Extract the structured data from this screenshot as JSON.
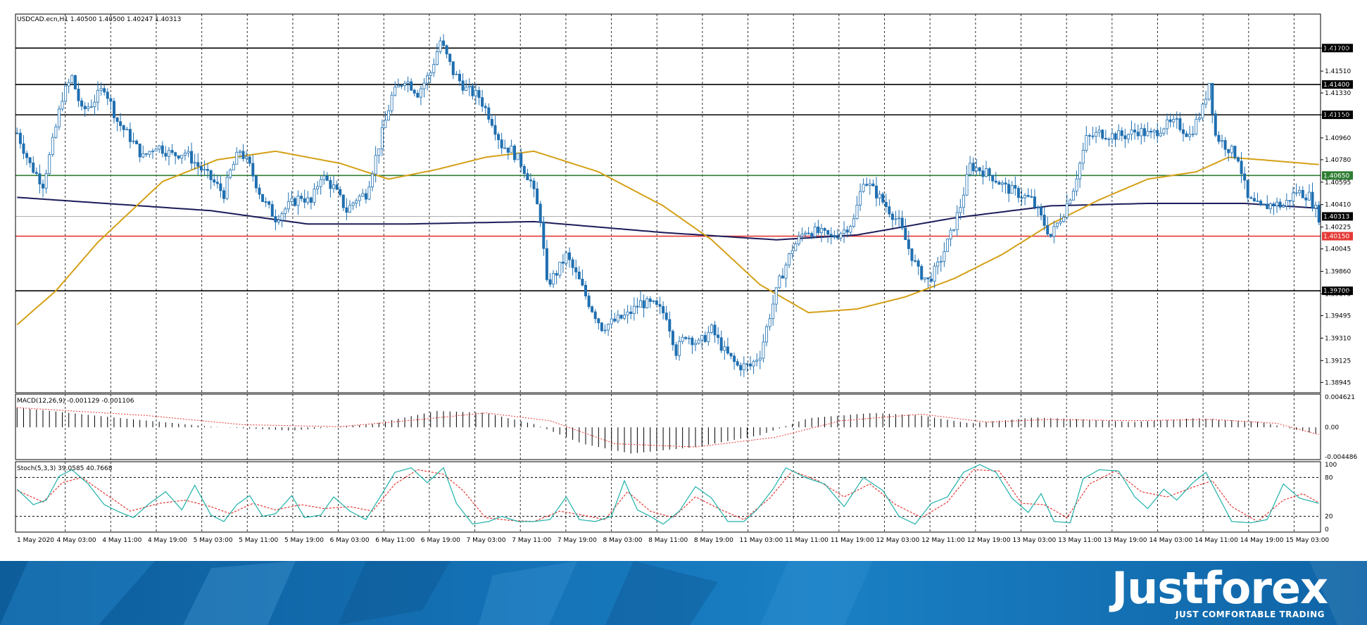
{
  "header": {
    "main_title": "USDCAD.ecn,H1  1.40500 1.40500 1.40247 1.40313",
    "macd_title": "MACD(12,26,9) -0.001129 -0.001106",
    "stoch_title": "Stoch(5,3,3) 39.0585 40.7668"
  },
  "branding": {
    "logo": "Justforex",
    "tagline": "JUST COMFORTABLE TRADING"
  },
  "colors": {
    "bull": "#ffffff",
    "bear": "#1f6fb0",
    "candle_outline": "#1f6fb0",
    "ma_fast": "#d4a017",
    "ma_slow": "#1c1c5a",
    "level_black": "#000000",
    "level_green": "#2e7d32",
    "level_red": "#e53935",
    "stoch_main": "#20b2aa",
    "stoch_signal": "#e53935",
    "macd_signal": "#e53935"
  },
  "chart_data": {
    "type": "candlestick",
    "symbol": "USDCAD.ecn",
    "timeframe": "H1",
    "ylim": [
      1.3886,
      1.4198
    ],
    "y_ticks": [
      "1.41700",
      "1.41510",
      "1.41330",
      "1.41150",
      "1.40960",
      "1.40780",
      "1.40595",
      "1.40410",
      "1.40225",
      "1.40045",
      "1.39860",
      "1.39675",
      "1.39495",
      "1.39310",
      "1.39125",
      "1.38945"
    ],
    "x_ticks": [
      "1 May 2020",
      "4 May 03:00",
      "4 May 11:00",
      "4 May 19:00",
      "5 May 03:00",
      "5 May 11:00",
      "5 May 19:00",
      "6 May 03:00",
      "6 May 11:00",
      "6 May 19:00",
      "7 May 03:00",
      "7 May 11:00",
      "7 May 19:00",
      "8 May 03:00",
      "8 May 11:00",
      "8 May 19:00",
      "11 May 03:00",
      "11 May 11:00",
      "11 May 19:00",
      "12 May 03:00",
      "12 May 11:00",
      "12 May 19:00",
      "13 May 03:00",
      "13 May 11:00",
      "13 May 19:00",
      "14 May 03:00",
      "14 May 11:00",
      "14 May 19:00",
      "15 May 03:00"
    ],
    "levels": [
      {
        "value": 1.417,
        "label": "1.41700",
        "color": "#000000"
      },
      {
        "value": 1.414,
        "label": "1.41400",
        "color": "#000000"
      },
      {
        "value": 1.4115,
        "label": "1.41150",
        "color": "#000000"
      },
      {
        "value": 1.4065,
        "label": "1.40650",
        "color": "#2e7d32"
      },
      {
        "value": 1.4015,
        "label": "1.40150",
        "color": "#e53935"
      },
      {
        "value": 1.397,
        "label": "1.39700",
        "color": "#000000"
      }
    ],
    "current_price": {
      "value": 1.40313,
      "label": "1.40313"
    },
    "price_path": [
      [
        0,
        1.41
      ],
      [
        4,
        1.4074
      ],
      [
        8,
        1.4058
      ],
      [
        11,
        1.4092
      ],
      [
        14,
        1.413
      ],
      [
        17,
        1.4146
      ],
      [
        20,
        1.4118
      ],
      [
        23,
        1.4124
      ],
      [
        27,
        1.4138
      ],
      [
        31,
        1.411
      ],
      [
        35,
        1.4096
      ],
      [
        39,
        1.408
      ],
      [
        43,
        1.409
      ],
      [
        48,
        1.4082
      ],
      [
        52,
        1.4084
      ],
      [
        56,
        1.4073
      ],
      [
        60,
        1.4062
      ],
      [
        64,
        1.405
      ],
      [
        66,
        1.4068
      ],
      [
        69,
        1.4086
      ],
      [
        72,
        1.4072
      ],
      [
        76,
        1.4045
      ],
      [
        80,
        1.403
      ],
      [
        84,
        1.404
      ],
      [
        88,
        1.4048
      ],
      [
        91,
        1.4042
      ],
      [
        94,
        1.4065
      ],
      [
        98,
        1.4055
      ],
      [
        102,
        1.4036
      ],
      [
        105,
        1.4046
      ],
      [
        108,
        1.405
      ],
      [
        112,
        1.409
      ],
      [
        116,
        1.413
      ],
      [
        120,
        1.4145
      ],
      [
        124,
        1.4133
      ],
      [
        128,
        1.415
      ],
      [
        131,
        1.4176
      ],
      [
        135,
        1.415
      ],
      [
        139,
        1.4136
      ],
      [
        143,
        1.413
      ],
      [
        147,
        1.411
      ],
      [
        150,
        1.409
      ],
      [
        153,
        1.4086
      ],
      [
        156,
        1.4075
      ],
      [
        159,
        1.406
      ],
      [
        162,
        1.403
      ],
      [
        164,
        1.3975
      ],
      [
        167,
        1.3985
      ],
      [
        170,
        1.3999
      ],
      [
        174,
        1.3978
      ],
      [
        177,
        1.396
      ],
      [
        181,
        1.394
      ],
      [
        185,
        1.3945
      ],
      [
        189,
        1.395
      ],
      [
        193,
        1.396
      ],
      [
        197,
        1.3958
      ],
      [
        201,
        1.395
      ],
      [
        204,
        1.392
      ],
      [
        207,
        1.3934
      ],
      [
        211,
        1.3926
      ],
      [
        215,
        1.3938
      ],
      [
        219,
        1.392
      ],
      [
        223,
        1.3908
      ],
      [
        227,
        1.3908
      ],
      [
        230,
        1.3918
      ],
      [
        233,
        1.395
      ],
      [
        236,
        1.3978
      ],
      [
        240,
        1.4005
      ],
      [
        244,
        1.402
      ],
      [
        248,
        1.4018
      ],
      [
        252,
        1.4014
      ],
      [
        256,
        1.402
      ],
      [
        259,
        1.4028
      ],
      [
        262,
        1.4062
      ],
      [
        266,
        1.405
      ],
      [
        269,
        1.404
      ],
      [
        273,
        1.4026
      ],
      [
        276,
        1.4005
      ],
      [
        279,
        1.3986
      ],
      [
        282,
        1.3978
      ],
      [
        285,
        1.399
      ],
      [
        289,
        1.4016
      ],
      [
        292,
        1.404
      ],
      [
        295,
        1.4073
      ],
      [
        298,
        1.407
      ],
      [
        302,
        1.4064
      ],
      [
        306,
        1.4055
      ],
      [
        310,
        1.405
      ],
      [
        314,
        1.4045
      ],
      [
        317,
        1.403
      ],
      [
        320,
        1.4015
      ],
      [
        324,
        1.4035
      ],
      [
        327,
        1.4055
      ],
      [
        331,
        1.4095
      ],
      [
        335,
        1.41
      ],
      [
        339,
        1.4098
      ],
      [
        343,
        1.4098
      ],
      [
        347,
        1.4102
      ],
      [
        351,
        1.4098
      ],
      [
        355,
        1.4106
      ],
      [
        359,
        1.4108
      ],
      [
        363,
        1.4098
      ],
      [
        367,
        1.412
      ],
      [
        369,
        1.4142
      ],
      [
        371,
        1.4098
      ],
      [
        374,
        1.409
      ],
      [
        378,
        1.408
      ],
      [
        381,
        1.4045
      ],
      [
        385,
        1.4038
      ],
      [
        389,
        1.4042
      ],
      [
        392,
        1.404
      ],
      [
        396,
        1.4052
      ],
      [
        400,
        1.4048
      ],
      [
        403,
        1.4031
      ]
    ],
    "ma_slow": [
      [
        0,
        1.4047
      ],
      [
        60,
        1.4036
      ],
      [
        90,
        1.4025
      ],
      [
        120,
        1.4025
      ],
      [
        160,
        1.4027
      ],
      [
        200,
        1.4018
      ],
      [
        235,
        1.4012
      ],
      [
        260,
        1.4016
      ],
      [
        290,
        1.403
      ],
      [
        320,
        1.404
      ],
      [
        350,
        1.4042
      ],
      [
        380,
        1.4042
      ],
      [
        403,
        1.4038
      ]
    ],
    "ma_fast": [
      [
        0,
        1.3942
      ],
      [
        12,
        1.397
      ],
      [
        25,
        1.401
      ],
      [
        45,
        1.406
      ],
      [
        62,
        1.4078
      ],
      [
        80,
        1.4085
      ],
      [
        100,
        1.4075
      ],
      [
        115,
        1.4062
      ],
      [
        130,
        1.407
      ],
      [
        145,
        1.408
      ],
      [
        160,
        1.4085
      ],
      [
        180,
        1.4068
      ],
      [
        200,
        1.404
      ],
      [
        215,
        1.4012
      ],
      [
        230,
        1.3975
      ],
      [
        245,
        1.3952
      ],
      [
        260,
        1.3955
      ],
      [
        275,
        1.3965
      ],
      [
        290,
        1.398
      ],
      [
        305,
        1.4
      ],
      [
        320,
        1.4025
      ],
      [
        335,
        1.4045
      ],
      [
        350,
        1.4062
      ],
      [
        365,
        1.4068
      ],
      [
        375,
        1.408
      ],
      [
        385,
        1.4078
      ],
      [
        403,
        1.4074
      ]
    ],
    "macd": {
      "ylim": [
        -0.004486,
        0.004621
      ],
      "tick_labels": [
        "0.004621",
        "0.00",
        "-0.004486"
      ],
      "hist_path": [
        [
          0,
          0.003
        ],
        [
          30,
          0.0015
        ],
        [
          60,
          0.0001
        ],
        [
          85,
          -0.0005
        ],
        [
          110,
          0.0005
        ],
        [
          130,
          0.0025
        ],
        [
          145,
          0.0022
        ],
        [
          160,
          0.0005
        ],
        [
          175,
          -0.0025
        ],
        [
          190,
          -0.004
        ],
        [
          210,
          -0.003
        ],
        [
          230,
          -0.0012
        ],
        [
          245,
          0.0014
        ],
        [
          265,
          0.0022
        ],
        [
          280,
          0.0018
        ],
        [
          295,
          0.0006
        ],
        [
          315,
          0.0015
        ],
        [
          330,
          0.0012
        ],
        [
          345,
          0.0008
        ],
        [
          365,
          0.0014
        ],
        [
          385,
          0.0008
        ],
        [
          403,
          -0.0011
        ]
      ],
      "signal_path": [
        [
          0,
          0.003
        ],
        [
          40,
          0.0018
        ],
        [
          70,
          0.0004
        ],
        [
          100,
          0.0001
        ],
        [
          125,
          0.0012
        ],
        [
          145,
          0.0022
        ],
        [
          165,
          0.001
        ],
        [
          185,
          -0.0025
        ],
        [
          210,
          -0.003
        ],
        [
          235,
          -0.0015
        ],
        [
          255,
          0.001
        ],
        [
          280,
          0.002
        ],
        [
          300,
          0.0008
        ],
        [
          320,
          0.0012
        ],
        [
          345,
          0.001
        ],
        [
          370,
          0.0012
        ],
        [
          390,
          0.0006
        ],
        [
          403,
          -0.0011
        ]
      ]
    },
    "stoch": {
      "ylim": [
        0,
        100
      ],
      "tick_labels": [
        "100",
        "80",
        "20",
        "0"
      ],
      "main_path": [
        [
          0,
          62
        ],
        [
          5,
          38
        ],
        [
          9,
          45
        ],
        [
          13,
          82
        ],
        [
          17,
          92
        ],
        [
          22,
          70
        ],
        [
          27,
          38
        ],
        [
          31,
          28
        ],
        [
          36,
          18
        ],
        [
          41,
          40
        ],
        [
          46,
          58
        ],
        [
          51,
          30
        ],
        [
          55,
          68
        ],
        [
          60,
          22
        ],
        [
          64,
          12
        ],
        [
          68,
          38
        ],
        [
          72,
          52
        ],
        [
          76,
          20
        ],
        [
          80,
          24
        ],
        [
          85,
          52
        ],
        [
          89,
          18
        ],
        [
          94,
          22
        ],
        [
          98,
          50
        ],
        [
          103,
          28
        ],
        [
          108,
          15
        ],
        [
          113,
          55
        ],
        [
          117,
          88
        ],
        [
          122,
          95
        ],
        [
          127,
          72
        ],
        [
          132,
          95
        ],
        [
          136,
          40
        ],
        [
          141,
          8
        ],
        [
          146,
          12
        ],
        [
          150,
          20
        ],
        [
          155,
          12
        ],
        [
          160,
          12
        ],
        [
          165,
          15
        ],
        [
          170,
          50
        ],
        [
          174,
          15
        ],
        [
          179,
          12
        ],
        [
          184,
          20
        ],
        [
          188,
          75
        ],
        [
          192,
          30
        ],
        [
          196,
          20
        ],
        [
          200,
          8
        ],
        [
          205,
          28
        ],
        [
          210,
          66
        ],
        [
          215,
          48
        ],
        [
          220,
          12
        ],
        [
          225,
          12
        ],
        [
          229,
          30
        ],
        [
          234,
          62
        ],
        [
          238,
          95
        ],
        [
          244,
          80
        ],
        [
          250,
          70
        ],
        [
          256,
          35
        ],
        [
          262,
          80
        ],
        [
          268,
          60
        ],
        [
          273,
          20
        ],
        [
          278,
          8
        ],
        [
          283,
          40
        ],
        [
          288,
          50
        ],
        [
          293,
          88
        ],
        [
          298,
          100
        ],
        [
          303,
          88
        ],
        [
          308,
          48
        ],
        [
          313,
          26
        ],
        [
          317,
          55
        ],
        [
          321,
          12
        ],
        [
          326,
          10
        ],
        [
          330,
          78
        ],
        [
          335,
          92
        ],
        [
          341,
          90
        ],
        [
          346,
          50
        ],
        [
          350,
          32
        ],
        [
          355,
          62
        ],
        [
          359,
          45
        ],
        [
          364,
          72
        ],
        [
          368,
          88
        ],
        [
          372,
          50
        ],
        [
          376,
          12
        ],
        [
          382,
          10
        ],
        [
          387,
          15
        ],
        [
          392,
          70
        ],
        [
          397,
          48
        ],
        [
          403,
          40
        ]
      ],
      "signal_path": [
        [
          0,
          60
        ],
        [
          8,
          42
        ],
        [
          14,
          72
        ],
        [
          20,
          80
        ],
        [
          28,
          52
        ],
        [
          35,
          28
        ],
        [
          44,
          40
        ],
        [
          52,
          45
        ],
        [
          60,
          35
        ],
        [
          66,
          24
        ],
        [
          73,
          40
        ],
        [
          80,
          30
        ],
        [
          88,
          38
        ],
        [
          95,
          32
        ],
        [
          103,
          35
        ],
        [
          110,
          28
        ],
        [
          117,
          70
        ],
        [
          124,
          92
        ],
        [
          132,
          85
        ],
        [
          138,
          60
        ],
        [
          145,
          18
        ],
        [
          152,
          14
        ],
        [
          160,
          12
        ],
        [
          168,
          28
        ],
        [
          175,
          22
        ],
        [
          182,
          15
        ],
        [
          189,
          58
        ],
        [
          196,
          28
        ],
        [
          203,
          18
        ],
        [
          210,
          50
        ],
        [
          218,
          30
        ],
        [
          225,
          15
        ],
        [
          233,
          48
        ],
        [
          240,
          90
        ],
        [
          248,
          75
        ],
        [
          256,
          50
        ],
        [
          264,
          70
        ],
        [
          272,
          38
        ],
        [
          280,
          18
        ],
        [
          288,
          42
        ],
        [
          296,
          92
        ],
        [
          304,
          90
        ],
        [
          311,
          40
        ],
        [
          318,
          38
        ],
        [
          325,
          18
        ],
        [
          332,
          70
        ],
        [
          340,
          90
        ],
        [
          348,
          58
        ],
        [
          356,
          50
        ],
        [
          364,
          65
        ],
        [
          370,
          75
        ],
        [
          376,
          35
        ],
        [
          384,
          12
        ],
        [
          392,
          45
        ],
        [
          398,
          55
        ],
        [
          403,
          41
        ]
      ]
    }
  }
}
